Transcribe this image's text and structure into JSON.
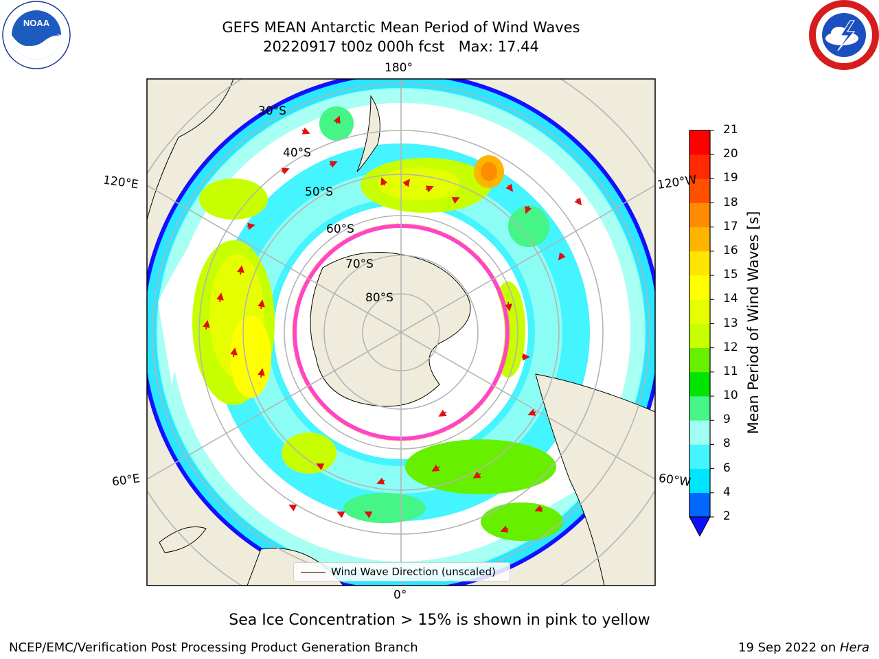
{
  "header": {
    "title_line1": "GEFS MEAN Antarctic Mean Period of Wind Waves",
    "title_line2": "20220917 t00z 000h fcst   Max: 17.44"
  },
  "logos": {
    "left": "noaa-logo",
    "right": "national-weather-service-logo"
  },
  "map": {
    "legend_label": "Wind Wave Direction (unscaled)",
    "lon_labels": {
      "top": "180°",
      "bottom": "0°",
      "upper_left": "120°E",
      "upper_right": "120°W",
      "lower_left": "60°E",
      "lower_right": "60°W"
    },
    "lat_labels": [
      "30°S",
      "40°S",
      "50°S",
      "60°S",
      "70°S",
      "80°S"
    ]
  },
  "colorbar": {
    "label": "Mean Period of Wind Waves [s]",
    "ticks": [
      "2",
      "4",
      "6",
      "8",
      "9",
      "10",
      "11",
      "12",
      "13",
      "14",
      "15",
      "16",
      "17",
      "18",
      "19",
      "20",
      "21"
    ],
    "colors": [
      "#0066ff",
      "#00e5ff",
      "#44f4ff",
      "#9ffff2",
      "#45f585",
      "#00e400",
      "#66f000",
      "#c8ff00",
      "#e6ff00",
      "#ffff00",
      "#ffe600",
      "#ffb400",
      "#ff8c00",
      "#ff5000",
      "#ff2a00",
      "#ff0000"
    ],
    "extend_color": "#1010ff"
  },
  "chart_data": {
    "type": "heatmap",
    "projection": "south polar stereographic",
    "title": "GEFS MEAN Antarctic Mean Period of Wind Waves",
    "subtitle": "20220917 t00z 000h fcst   Max: 17.44",
    "variable": "Mean Period of Wind Waves [s]",
    "max": 17.44,
    "color_levels": [
      2,
      4,
      6,
      8,
      9,
      10,
      11,
      12,
      13,
      14,
      15,
      16,
      17,
      18,
      19,
      20,
      21
    ],
    "extend": "min",
    "legend": "Wind Wave Direction (unscaled)",
    "overlay_note": "Sea Ice Concentration > 15% is shown in pink to yellow"
  },
  "footer": {
    "note": "Sea Ice Concentration > 15% is shown in pink to yellow",
    "credit": "NCEP/EMC/Verification Post Processing Product Generation Branch",
    "date": "19 Sep 2022 on ",
    "machine": "Hera"
  }
}
